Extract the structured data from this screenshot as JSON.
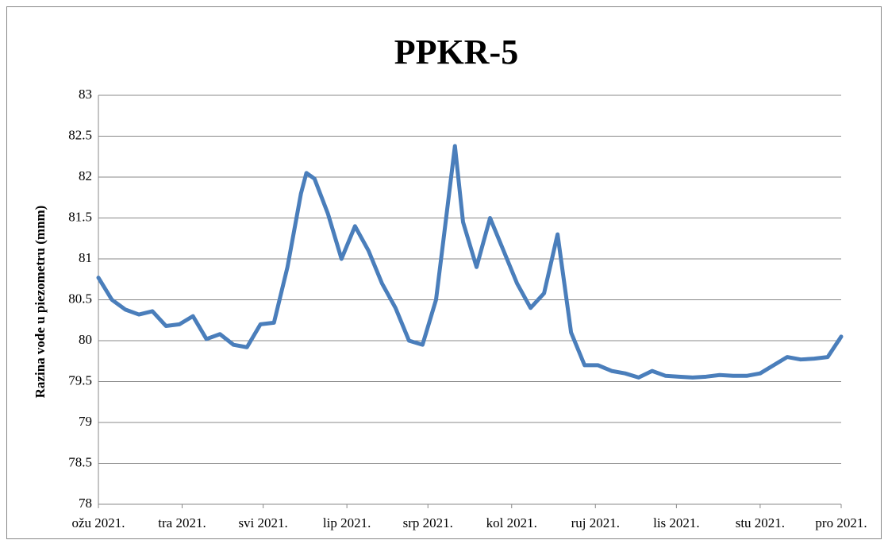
{
  "chart_data": {
    "type": "line",
    "title": "PPKR-5",
    "ylabel": "Razina vode u piezometru (mnm)",
    "x": [
      0,
      5,
      10,
      15,
      20,
      25,
      30,
      35,
      40,
      45,
      50,
      55,
      60,
      65,
      70,
      75,
      77,
      80,
      85,
      90,
      95,
      100,
      105,
      110,
      115,
      120,
      125,
      128,
      132,
      135,
      140,
      145,
      150,
      155,
      160,
      165,
      170,
      175,
      180,
      185,
      190,
      195,
      200,
      205,
      210,
      215,
      220,
      225,
      230,
      235,
      240,
      245,
      250,
      255,
      260,
      265,
      270,
      275
    ],
    "series": [
      {
        "name": "PPKR-5",
        "color": "#4a7ebb",
        "values": [
          80.77,
          80.5,
          80.38,
          80.32,
          80.36,
          80.18,
          80.2,
          80.3,
          80.02,
          80.08,
          79.95,
          79.92,
          80.2,
          80.22,
          80.9,
          81.8,
          82.05,
          81.98,
          81.55,
          81.0,
          81.4,
          81.1,
          80.7,
          80.4,
          80.0,
          79.95,
          80.5,
          81.3,
          82.38,
          81.45,
          80.9,
          81.5,
          81.1,
          80.7,
          80.4,
          80.58,
          81.3,
          80.1,
          79.7,
          79.7,
          79.63,
          79.6,
          79.55,
          79.63,
          79.57,
          79.56,
          79.55,
          79.56,
          79.58,
          79.57,
          79.57,
          79.6,
          79.7,
          79.8,
          79.77,
          79.78,
          79.8,
          80.05
        ]
      }
    ],
    "xlim": [
      0,
      275
    ],
    "xticks": [
      {
        "value": 0,
        "label": "ožu 2021."
      },
      {
        "value": 31,
        "label": "tra 2021."
      },
      {
        "value": 61,
        "label": "svi 2021."
      },
      {
        "value": 92,
        "label": "lip 2021."
      },
      {
        "value": 122,
        "label": "srp 2021."
      },
      {
        "value": 153,
        "label": "kol 2021."
      },
      {
        "value": 184,
        "label": "ruj 2021."
      },
      {
        "value": 214,
        "label": "lis 2021."
      },
      {
        "value": 245,
        "label": "stu 2021."
      },
      {
        "value": 275,
        "label": "pro 2021."
      }
    ],
    "ylim": [
      78,
      83
    ],
    "yticks": [
      78,
      78.5,
      79,
      79.5,
      80,
      80.5,
      81,
      81.5,
      82,
      82.5,
      83
    ],
    "grid": true
  }
}
